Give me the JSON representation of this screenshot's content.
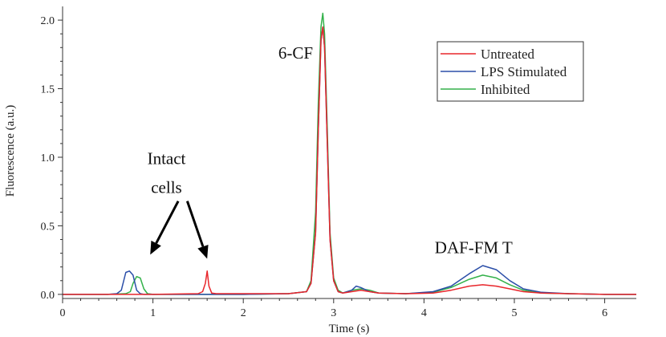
{
  "chart_data": {
    "type": "line",
    "title": "",
    "xlabel": "Time (s)",
    "ylabel": "Fluorescence (a.u.)",
    "xlim": [
      0,
      6.35
    ],
    "ylim": [
      -0.03,
      2.1
    ],
    "xticks": [
      0,
      1,
      2,
      3,
      4,
      5,
      6
    ],
    "yticks": [
      0.0,
      0.5,
      1.0,
      1.5,
      2.0
    ],
    "ytick_labels": [
      "0.0",
      "0.5",
      "1.0",
      "1.5",
      "2.0"
    ],
    "grid": false,
    "legend_position": "top-right",
    "series": [
      {
        "name": "Untreated",
        "color": "#e8262b",
        "x": [
          0.0,
          0.5,
          1.0,
          1.5,
          1.55,
          1.58,
          1.6,
          1.62,
          1.65,
          1.7,
          2.0,
          2.5,
          2.7,
          2.75,
          2.8,
          2.83,
          2.86,
          2.88,
          2.9,
          2.93,
          2.96,
          3.0,
          3.05,
          3.1,
          3.2,
          3.3,
          3.4,
          3.5,
          3.8,
          4.1,
          4.3,
          4.5,
          4.65,
          4.8,
          4.95,
          5.1,
          5.3,
          5.6,
          6.0,
          6.35
        ],
        "y": [
          0.0,
          0.0,
          0.0,
          0.005,
          0.02,
          0.08,
          0.17,
          0.06,
          0.01,
          0.005,
          0.005,
          0.005,
          0.02,
          0.08,
          0.45,
          1.2,
          1.85,
          1.95,
          1.8,
          1.1,
          0.4,
          0.1,
          0.02,
          0.01,
          0.02,
          0.03,
          0.02,
          0.01,
          0.005,
          0.01,
          0.03,
          0.06,
          0.07,
          0.06,
          0.04,
          0.02,
          0.01,
          0.005,
          0.0,
          0.0
        ]
      },
      {
        "name": "LPS Stimulated",
        "color": "#2b4ea8",
        "x": [
          0.0,
          0.5,
          0.6,
          0.65,
          0.7,
          0.74,
          0.78,
          0.82,
          0.86,
          0.9,
          1.0,
          1.5,
          2.0,
          2.5,
          2.7,
          2.75,
          2.8,
          2.83,
          2.86,
          2.88,
          2.9,
          2.93,
          2.96,
          3.0,
          3.05,
          3.1,
          3.2,
          3.25,
          3.3,
          3.4,
          3.5,
          3.8,
          4.1,
          4.3,
          4.5,
          4.65,
          4.8,
          4.95,
          5.1,
          5.3,
          5.6,
          6.0,
          6.35
        ],
        "y": [
          0.0,
          0.0,
          0.005,
          0.03,
          0.16,
          0.17,
          0.14,
          0.03,
          0.005,
          0.0,
          0.0,
          0.0,
          0.0,
          0.005,
          0.02,
          0.08,
          0.45,
          1.2,
          1.85,
          1.95,
          1.8,
          1.1,
          0.4,
          0.1,
          0.02,
          0.01,
          0.03,
          0.06,
          0.05,
          0.02,
          0.01,
          0.005,
          0.02,
          0.06,
          0.15,
          0.21,
          0.18,
          0.1,
          0.04,
          0.015,
          0.005,
          0.0,
          0.0
        ]
      },
      {
        "name": "Inhibited",
        "color": "#33b14a",
        "x": [
          0.0,
          0.5,
          0.7,
          0.75,
          0.78,
          0.82,
          0.86,
          0.9,
          0.94,
          1.0,
          1.5,
          2.0,
          2.5,
          2.7,
          2.75,
          2.8,
          2.83,
          2.86,
          2.88,
          2.9,
          2.93,
          2.96,
          3.0,
          3.05,
          3.1,
          3.2,
          3.3,
          3.4,
          3.5,
          3.8,
          4.1,
          4.3,
          4.5,
          4.65,
          4.8,
          4.95,
          5.1,
          5.3,
          5.6,
          6.0,
          6.35
        ],
        "y": [
          0.0,
          0.0,
          0.005,
          0.02,
          0.08,
          0.13,
          0.12,
          0.04,
          0.005,
          0.0,
          0.0,
          0.0,
          0.005,
          0.02,
          0.1,
          0.6,
          1.4,
          1.95,
          2.05,
          1.9,
          1.2,
          0.45,
          0.12,
          0.03,
          0.01,
          0.03,
          0.04,
          0.03,
          0.01,
          0.005,
          0.015,
          0.05,
          0.11,
          0.14,
          0.12,
          0.07,
          0.03,
          0.01,
          0.005,
          0.0,
          0.0
        ]
      }
    ],
    "annotations": [
      {
        "text": "6-CF",
        "x": 2.58,
        "y": 1.72
      },
      {
        "text": "Intact",
        "x": 1.15,
        "y": 0.95
      },
      {
        "text": "cells",
        "x": 1.15,
        "y": 0.74
      },
      {
        "text": "DAF-FM T",
        "x": 4.55,
        "y": 0.3
      }
    ],
    "arrows": [
      {
        "from": [
          1.28,
          0.68
        ],
        "to": [
          0.97,
          0.29
        ]
      },
      {
        "from": [
          1.38,
          0.68
        ],
        "to": [
          1.6,
          0.26
        ]
      }
    ]
  }
}
